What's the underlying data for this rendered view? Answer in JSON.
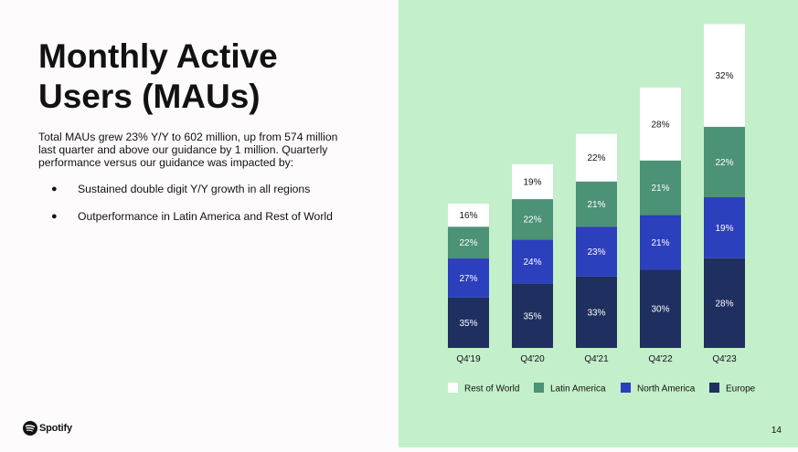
{
  "slide": {
    "title_line1": "Monthly Active",
    "title_line2": "Users (MAUs)",
    "body": "Total MAUs grew 23% Y/Y to 602 million, up from 574 million last quarter and above our guidance by 1 million. Quarterly performance versus our guidance was impacted by:",
    "bullets": [
      "Sustained double digit Y/Y growth in all regions",
      "Outperformance in Latin America and Rest of World"
    ],
    "bullet_glyph": "●",
    "logo_text": "Spotify",
    "page_number": "14"
  },
  "colors": {
    "panel_bg": "#c3efca",
    "europe": "#1f2f60",
    "north_america": "#2c3fbd",
    "latin_america": "#4c9277",
    "rest_of_world": "#ffffff",
    "label_dark": "#121212",
    "label_light": "#ffffff"
  },
  "chart_data": {
    "type": "bar",
    "stacked": true,
    "categories": [
      "Q4'19",
      "Q4'20",
      "Q4'21",
      "Q4'22",
      "Q4'23"
    ],
    "totals_mau_millions": [
      271,
      345,
      406,
      489,
      602
    ],
    "series": [
      {
        "name": "Europe",
        "values": [
          35,
          35,
          33,
          30,
          28
        ],
        "labels": [
          "35%",
          "35%",
          "33%",
          "30%",
          "28%"
        ]
      },
      {
        "name": "North America",
        "values": [
          27,
          24,
          23,
          21,
          19
        ],
        "labels": [
          "27%",
          "24%",
          "23%",
          "21%",
          "19%"
        ]
      },
      {
        "name": "Latin America",
        "values": [
          22,
          22,
          21,
          21,
          22
        ],
        "labels": [
          "22%",
          "22%",
          "21%",
          "21%",
          "22%"
        ]
      },
      {
        "name": "Rest of World",
        "values": [
          16,
          19,
          22,
          28,
          32
        ],
        "labels": [
          "16%",
          "19%",
          "22%",
          "28%",
          "32%"
        ]
      }
    ],
    "legend": [
      "Rest of World",
      "Latin America",
      "North America",
      "Europe"
    ],
    "legend_position": "bottom",
    "grid": false
  }
}
